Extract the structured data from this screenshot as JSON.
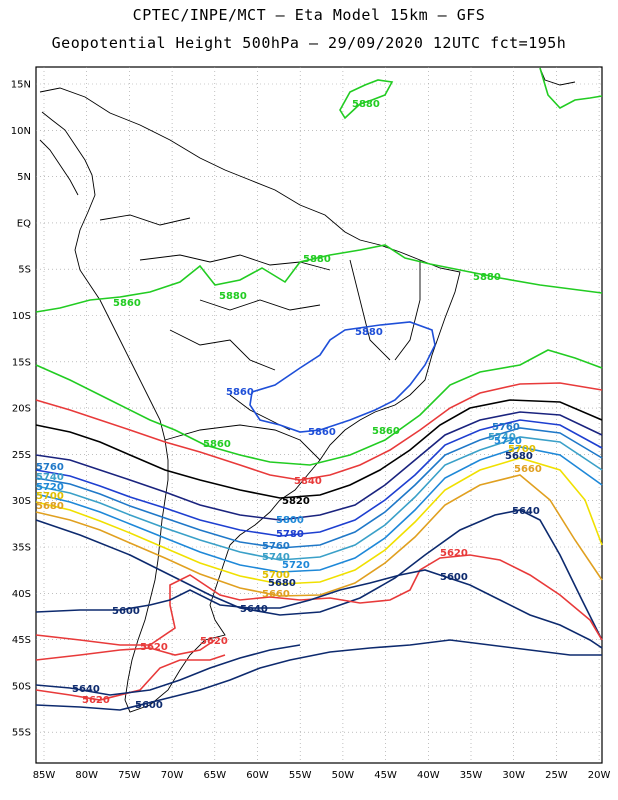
{
  "header": {
    "line1": "CPTEC/INPE/MCT –  Eta Model 15km – GFS",
    "line2": "Geopotential Height 500hPa – 29/09/2020 12UTC fct=195h"
  },
  "axes": {
    "lat_labels": [
      "15N",
      "10N",
      "5N",
      "EQ",
      "5S",
      "10S",
      "15S",
      "20S",
      "25S",
      "30S",
      "35S",
      "40S",
      "45S",
      "50S",
      "55S"
    ],
    "lon_labels": [
      "85W",
      "80W",
      "75W",
      "70W",
      "65W",
      "60W",
      "55W",
      "50W",
      "45W",
      "40W",
      "35W",
      "30W",
      "25W",
      "20W"
    ]
  },
  "contours": [
    {
      "value": "5880",
      "color": "#22cc22"
    },
    {
      "value": "5860",
      "color": "#1e4fd8"
    },
    {
      "value": "5840",
      "color": "#e83a3a"
    },
    {
      "value": "5820",
      "color": "#000000"
    },
    {
      "value": "5800",
      "color": "#1a237e"
    },
    {
      "value": "5780",
      "color": "#1e3fd0"
    },
    {
      "value": "5760",
      "color": "#1f78c8"
    },
    {
      "value": "5740",
      "color": "#3aa0c8"
    },
    {
      "value": "5720",
      "color": "#1e88d8"
    },
    {
      "value": "5700",
      "color": "#f0e000"
    },
    {
      "value": "5680",
      "color": "#e0a020"
    },
    {
      "value": "5660",
      "color": "#b0b0b0"
    },
    {
      "value": "5640",
      "color": "#0d2a6e"
    },
    {
      "value": "5620",
      "color": "#e83a3a"
    },
    {
      "value": "5600",
      "color": "#0d2a6e"
    }
  ],
  "labels": {
    "g1": "5880",
    "g2": "5880",
    "g3": "5880",
    "g4": "5860",
    "g5": "5880",
    "b1": "5880",
    "b2": "5860",
    "b3": "5860",
    "b4": "5880",
    "r1": "5840",
    "k1": "5820",
    "c1": "5800",
    "c2": "5780",
    "c3": "5760",
    "c4": "5740",
    "c5": "5720",
    "y1": "5700",
    "o1": "5680",
    "o2": "5660",
    "n1": "5640",
    "r2": "5620",
    "n2": "5600",
    "n3": "5600",
    "r3": "5620",
    "n4": "5640",
    "r4": "5620",
    "n5": "5600",
    "e1": "5760",
    "e2": "5740",
    "e3": "5720",
    "e4": "5700",
    "e5": "5680",
    "e6": "5660",
    "e7": "5640",
    "w1": "5760",
    "w2": "5740",
    "w3": "5720",
    "w4": "5700",
    "w5": "5680"
  }
}
